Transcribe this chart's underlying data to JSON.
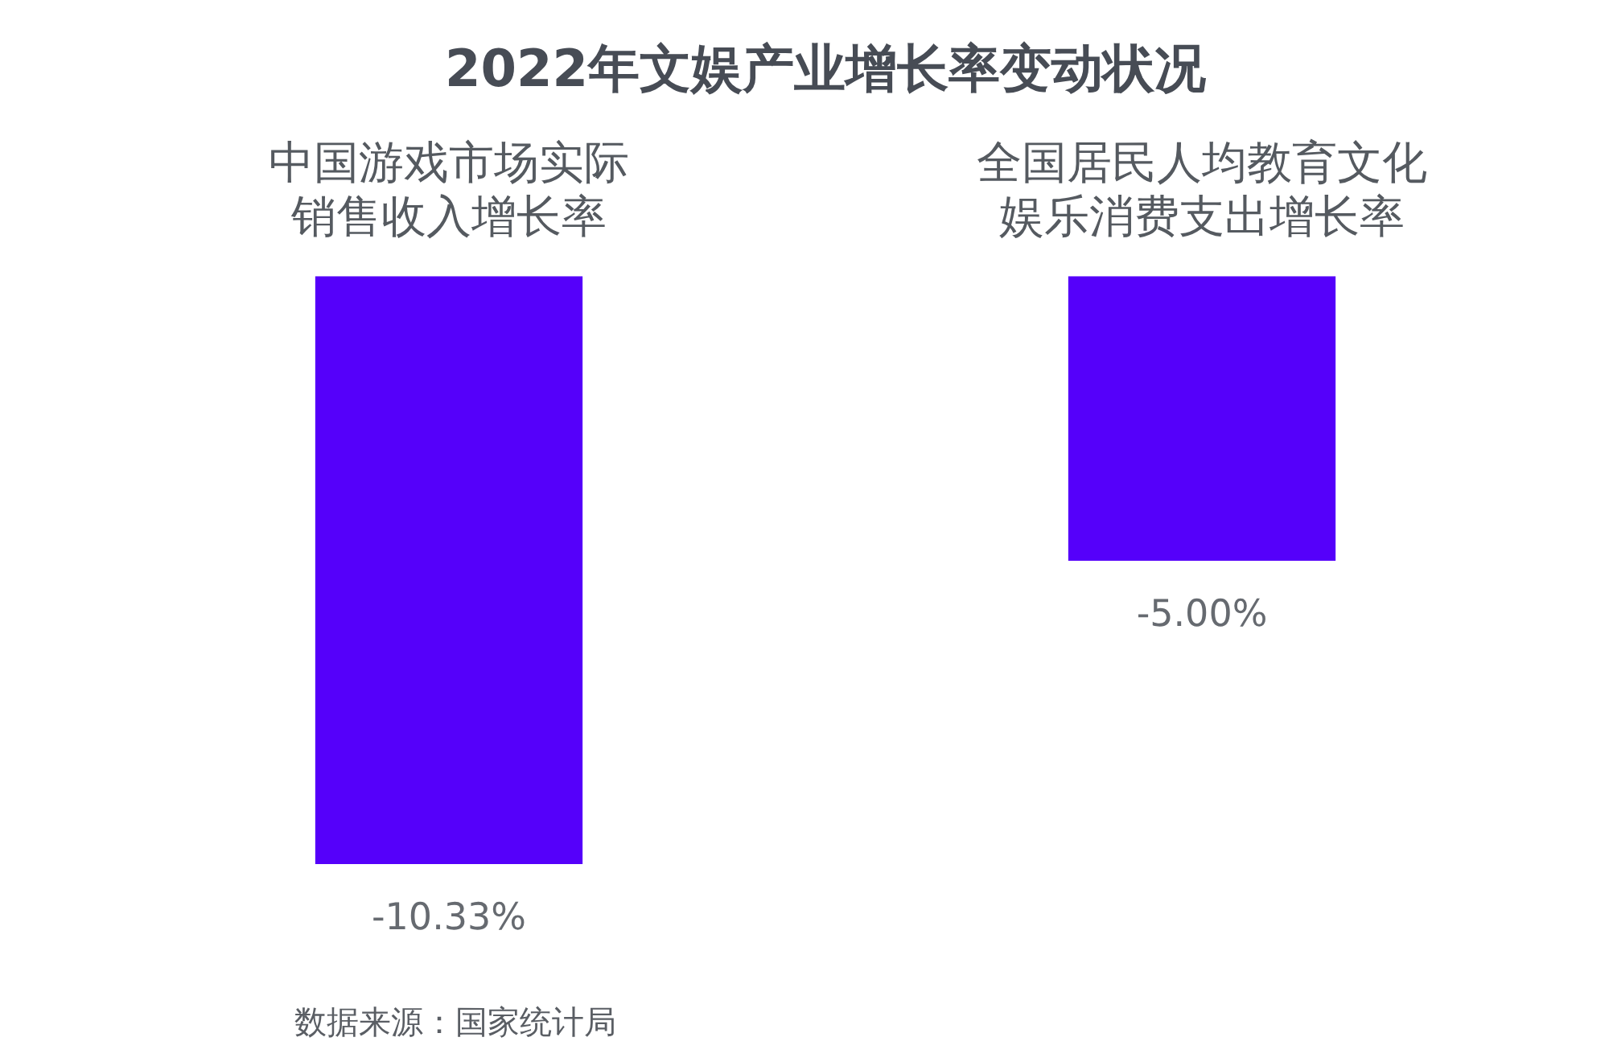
{
  "chart_data": {
    "type": "bar",
    "title": "2022年文娱产业增长率变动状况",
    "categories": [
      "中国游戏市场实际销售收入增长率",
      "全国居民人均教育文化娱乐消费支出增长率"
    ],
    "values": [
      -10.33,
      -5.0
    ],
    "color": "#5500fa",
    "value_labels": [
      "-10.33%",
      "-5.00%"
    ],
    "annotations": [
      "数据来源：国家统计局"
    ]
  }
}
